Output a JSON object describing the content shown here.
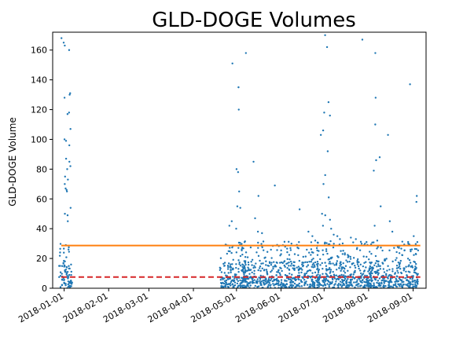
{
  "chart_data": {
    "type": "scatter",
    "title": "GLD-DOGE Volumes",
    "xlabel": "",
    "ylabel": "GLD-DOGE Volume",
    "xlim": [
      "2017-12-24",
      "2018-09-10"
    ],
    "ylim": [
      0,
      172
    ],
    "x_ticks": [
      "2018-01-01",
      "2018-02-01",
      "2018-03-01",
      "2018-04-01",
      "2018-05-01",
      "2018-06-01",
      "2018-07-01",
      "2018-08-01",
      "2018-09-01"
    ],
    "y_ticks": [
      0,
      20,
      40,
      60,
      80,
      100,
      120,
      140,
      160
    ],
    "grid": false,
    "colors": {
      "points": "#1f77b4",
      "mean": "#ff7f0e",
      "median": "#d62728"
    },
    "mean_line": {
      "value": 28.7,
      "style": "solid"
    },
    "median_line": {
      "value": 7.5,
      "style": "dashed"
    },
    "clusters": [
      {
        "start": "2017-12-29",
        "end": "2018-01-07",
        "points": [
          [
            "2017-12-30",
            168
          ],
          [
            "2018-01-01",
            165
          ],
          [
            "2018-01-01",
            163
          ],
          [
            "2018-01-05",
            160
          ],
          [
            "2018-01-05",
            131
          ],
          [
            "2018-01-05",
            130
          ],
          [
            "2018-01-01",
            128
          ],
          [
            "2018-01-04",
            118
          ],
          [
            "2018-01-03",
            117
          ],
          [
            "2018-01-05",
            107
          ],
          [
            "2018-01-01",
            100
          ],
          [
            "2018-01-02",
            99
          ],
          [
            "2018-01-05",
            96
          ],
          [
            "2018-01-02",
            87
          ],
          [
            "2018-01-05",
            85
          ],
          [
            "2018-01-05",
            82
          ],
          [
            "2018-01-03",
            80
          ],
          [
            "2018-01-02",
            75
          ],
          [
            "2018-01-04",
            73
          ],
          [
            "2018-01-01",
            70
          ],
          [
            "2018-01-02",
            67
          ],
          [
            "2018-01-03",
            66
          ],
          [
            "2018-01-03",
            65
          ],
          [
            "2018-01-05",
            54
          ],
          [
            "2018-01-02",
            50
          ],
          [
            "2018-01-03",
            49
          ],
          [
            "2018-01-04",
            45
          ]
        ]
      },
      {
        "start": "2018-04-20",
        "end": "2018-05-08",
        "points": [
          [
            "2018-04-28",
            151
          ],
          [
            "2018-05-02",
            135
          ],
          [
            "2018-05-03",
            120
          ],
          [
            "2018-05-01",
            80
          ],
          [
            "2018-05-02",
            78
          ],
          [
            "2018-05-03",
            65
          ],
          [
            "2018-05-02",
            55
          ],
          [
            "2018-05-04",
            54
          ],
          [
            "2018-04-28",
            45
          ],
          [
            "2018-04-26",
            42
          ],
          [
            "2018-05-01",
            40
          ]
        ]
      },
      {
        "start": "2018-05-05",
        "end": "2018-06-01",
        "points": [
          [
            "2018-05-08",
            158
          ],
          [
            "2018-05-13",
            85
          ],
          [
            "2018-05-16",
            62
          ],
          [
            "2018-05-14",
            47
          ],
          [
            "2018-05-16",
            38
          ],
          [
            "2018-05-19",
            37
          ],
          [
            "2018-05-28",
            69
          ]
        ]
      },
      {
        "start": "2018-06-01",
        "end": "2018-06-28",
        "points": [
          [
            "2018-06-14",
            53
          ],
          [
            "2018-06-20",
            38
          ],
          [
            "2018-06-23",
            35
          ],
          [
            "2018-06-25",
            32
          ]
        ]
      },
      {
        "start": "2018-06-26",
        "end": "2018-07-14",
        "points": [
          [
            "2018-07-02",
            170
          ],
          [
            "2018-07-03",
            162
          ],
          [
            "2018-07-04",
            125
          ],
          [
            "2018-07-01",
            118
          ],
          [
            "2018-07-05",
            116
          ],
          [
            "2018-06-30",
            106
          ],
          [
            "2018-06-29",
            103
          ],
          [
            "2018-07-03",
            92
          ],
          [
            "2018-07-02",
            76
          ],
          [
            "2018-07-01",
            70
          ],
          [
            "2018-07-04",
            61
          ],
          [
            "2018-06-30",
            50
          ],
          [
            "2018-07-02",
            49
          ],
          [
            "2018-07-05",
            46
          ],
          [
            "2018-06-30",
            42
          ],
          [
            "2018-07-06",
            40
          ],
          [
            "2018-07-08",
            36
          ],
          [
            "2018-07-10",
            35
          ],
          [
            "2018-07-12",
            33
          ]
        ]
      },
      {
        "start": "2018-07-14",
        "end": "2018-08-04",
        "points": [
          [
            "2018-07-28",
            167
          ],
          [
            "2018-07-20",
            34
          ],
          [
            "2018-07-23",
            33
          ],
          [
            "2018-07-30",
            31
          ]
        ]
      },
      {
        "start": "2018-08-01",
        "end": "2018-09-05",
        "points": [
          [
            "2018-08-06",
            158
          ],
          [
            "2018-08-06",
            128
          ],
          [
            "2018-08-06",
            110
          ],
          [
            "2018-08-15",
            103
          ],
          [
            "2018-08-09",
            88
          ],
          [
            "2018-08-06",
            86
          ],
          [
            "2018-08-05",
            79
          ],
          [
            "2018-08-09",
            55
          ],
          [
            "2018-08-16",
            45
          ],
          [
            "2018-08-05",
            42
          ],
          [
            "2018-08-17",
            38
          ],
          [
            "2018-08-30",
            137
          ],
          [
            "2018-09-03",
            62
          ],
          [
            "2018-09-03",
            58
          ],
          [
            "2018-09-01",
            35
          ],
          [
            "2018-09-04",
            31
          ]
        ]
      }
    ]
  }
}
